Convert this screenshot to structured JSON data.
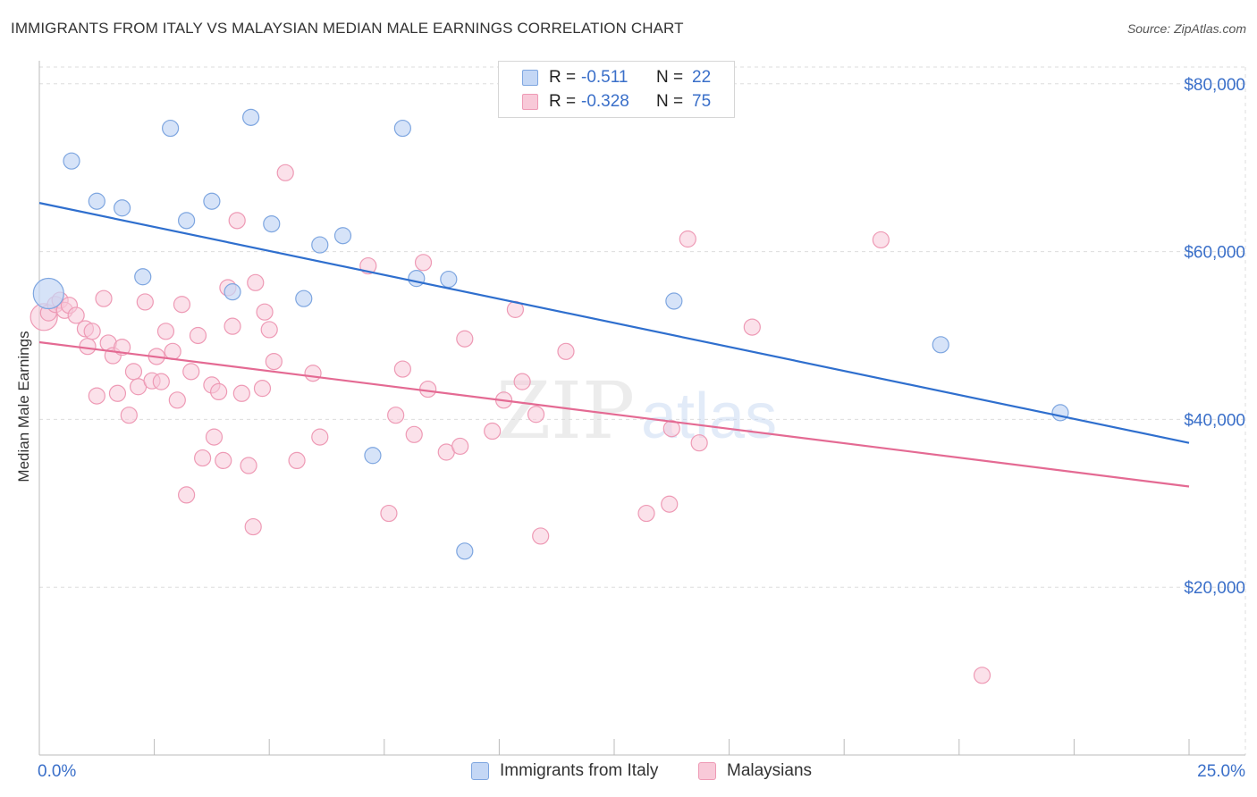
{
  "header": {
    "title": "IMMIGRANTS FROM ITALY VS MALAYSIAN MEDIAN MALE EARNINGS CORRELATION CHART",
    "source": "Source: ZipAtlas.com"
  },
  "legend": {
    "rows": [
      {
        "r_label": "R =",
        "r_value": "-0.511",
        "n_label": "N =",
        "n_value": "22"
      },
      {
        "r_label": "R =",
        "r_value": "-0.328",
        "n_label": "N =",
        "n_value": "75"
      }
    ]
  },
  "bottom_legend": {
    "italy": "Immigrants from Italy",
    "malaysians": "Malaysians"
  },
  "watermark": {
    "part1": "ZIP",
    "part2": "atlas"
  },
  "colors": {
    "italy_fill": "#c4d7f5",
    "italy_stroke": "#7ea6e0",
    "italy_line": "#2f6fce",
    "malay_fill": "#f8c9d8",
    "malay_stroke": "#ee9ab5",
    "malay_line": "#e46a93",
    "axis_label": "#3a6fc9",
    "grid": "#dddddd"
  },
  "chart_data": {
    "type": "scatter",
    "title": "IMMIGRANTS FROM ITALY VS MALAYSIAN MEDIAN MALE EARNINGS CORRELATION CHART",
    "xlabel": "",
    "ylabel": "Median Male Earnings",
    "xlim": [
      0,
      25
    ],
    "ylim": [
      0,
      82000
    ],
    "x_tick_labels": [
      "0.0%",
      "25.0%"
    ],
    "y_ticks": [
      20000,
      40000,
      60000,
      80000
    ],
    "y_tick_labels": [
      "$20,000",
      "$40,000",
      "$60,000",
      "$80,000"
    ],
    "grid": true,
    "legend_position": "top-center",
    "series": [
      {
        "name": "Immigrants from Italy",
        "r": -0.511,
        "n": 22,
        "trend": {
          "x": [
            0,
            25
          ],
          "y": [
            65800,
            37200
          ]
        },
        "points": [
          {
            "x": 0.2,
            "y": 55000,
            "big": true
          },
          {
            "x": 0.7,
            "y": 70800
          },
          {
            "x": 1.25,
            "y": 66000
          },
          {
            "x": 1.8,
            "y": 65200
          },
          {
            "x": 2.25,
            "y": 57000
          },
          {
            "x": 2.85,
            "y": 74700
          },
          {
            "x": 3.2,
            "y": 63700
          },
          {
            "x": 3.75,
            "y": 66000
          },
          {
            "x": 4.2,
            "y": 55200
          },
          {
            "x": 4.6,
            "y": 76000
          },
          {
            "x": 5.05,
            "y": 63300
          },
          {
            "x": 5.75,
            "y": 54400
          },
          {
            "x": 6.1,
            "y": 60800
          },
          {
            "x": 6.6,
            "y": 61900
          },
          {
            "x": 7.25,
            "y": 35700
          },
          {
            "x": 7.9,
            "y": 74700
          },
          {
            "x": 8.2,
            "y": 56800
          },
          {
            "x": 8.9,
            "y": 56700
          },
          {
            "x": 9.25,
            "y": 24300
          },
          {
            "x": 13.8,
            "y": 54100
          },
          {
            "x": 19.6,
            "y": 48900
          },
          {
            "x": 22.2,
            "y": 40800
          }
        ]
      },
      {
        "name": "Malaysians",
        "r": -0.328,
        "n": 75,
        "trend": {
          "x": [
            0,
            25
          ],
          "y": [
            49200,
            32000
          ]
        },
        "points": [
          {
            "x": 0.1,
            "y": 52200,
            "big": true
          },
          {
            "x": 0.2,
            "y": 52700
          },
          {
            "x": 0.35,
            "y": 53700
          },
          {
            "x": 0.45,
            "y": 54200
          },
          {
            "x": 0.55,
            "y": 53000
          },
          {
            "x": 0.65,
            "y": 53600
          },
          {
            "x": 0.8,
            "y": 52400
          },
          {
            "x": 1.0,
            "y": 50800
          },
          {
            "x": 1.05,
            "y": 48700
          },
          {
            "x": 1.15,
            "y": 50500
          },
          {
            "x": 1.25,
            "y": 42800
          },
          {
            "x": 1.4,
            "y": 54400
          },
          {
            "x": 1.5,
            "y": 49100
          },
          {
            "x": 1.6,
            "y": 47600
          },
          {
            "x": 1.7,
            "y": 43100
          },
          {
            "x": 1.8,
            "y": 48600
          },
          {
            "x": 1.95,
            "y": 40500
          },
          {
            "x": 2.05,
            "y": 45700
          },
          {
            "x": 2.15,
            "y": 43900
          },
          {
            "x": 2.3,
            "y": 54000
          },
          {
            "x": 2.45,
            "y": 44600
          },
          {
            "x": 2.55,
            "y": 47500
          },
          {
            "x": 2.65,
            "y": 44500
          },
          {
            "x": 2.75,
            "y": 50500
          },
          {
            "x": 2.9,
            "y": 48100
          },
          {
            "x": 3.0,
            "y": 42300
          },
          {
            "x": 3.1,
            "y": 53700
          },
          {
            "x": 3.2,
            "y": 31000
          },
          {
            "x": 3.3,
            "y": 45700
          },
          {
            "x": 3.45,
            "y": 50000
          },
          {
            "x": 3.55,
            "y": 35400
          },
          {
            "x": 3.75,
            "y": 44100
          },
          {
            "x": 3.8,
            "y": 37900
          },
          {
            "x": 3.9,
            "y": 43300
          },
          {
            "x": 4.0,
            "y": 35100
          },
          {
            "x": 4.1,
            "y": 55700
          },
          {
            "x": 4.2,
            "y": 51100
          },
          {
            "x": 4.3,
            "y": 63700
          },
          {
            "x": 4.4,
            "y": 43100
          },
          {
            "x": 4.55,
            "y": 34500
          },
          {
            "x": 4.65,
            "y": 27200
          },
          {
            "x": 4.7,
            "y": 56300
          },
          {
            "x": 4.85,
            "y": 43700
          },
          {
            "x": 4.9,
            "y": 52800
          },
          {
            "x": 5.0,
            "y": 50700
          },
          {
            "x": 5.1,
            "y": 46900
          },
          {
            "x": 5.35,
            "y": 69400
          },
          {
            "x": 5.6,
            "y": 35100
          },
          {
            "x": 5.95,
            "y": 45500
          },
          {
            "x": 6.1,
            "y": 37900
          },
          {
            "x": 7.15,
            "y": 58300
          },
          {
            "x": 7.6,
            "y": 28800
          },
          {
            "x": 7.75,
            "y": 40500
          },
          {
            "x": 7.9,
            "y": 46000
          },
          {
            "x": 8.15,
            "y": 38200
          },
          {
            "x": 8.35,
            "y": 58700
          },
          {
            "x": 8.45,
            "y": 43600
          },
          {
            "x": 8.85,
            "y": 36100
          },
          {
            "x": 9.15,
            "y": 36800
          },
          {
            "x": 9.25,
            "y": 49600
          },
          {
            "x": 9.85,
            "y": 38600
          },
          {
            "x": 10.1,
            "y": 42300
          },
          {
            "x": 10.35,
            "y": 53100
          },
          {
            "x": 10.5,
            "y": 44500
          },
          {
            "x": 10.8,
            "y": 40600
          },
          {
            "x": 10.9,
            "y": 26100
          },
          {
            "x": 11.45,
            "y": 48100
          },
          {
            "x": 13.2,
            "y": 28800
          },
          {
            "x": 13.7,
            "y": 29900
          },
          {
            "x": 13.75,
            "y": 38900
          },
          {
            "x": 14.1,
            "y": 61500
          },
          {
            "x": 14.35,
            "y": 37200
          },
          {
            "x": 15.5,
            "y": 51000
          },
          {
            "x": 18.3,
            "y": 61400
          },
          {
            "x": 20.5,
            "y": 9500
          }
        ]
      }
    ]
  }
}
